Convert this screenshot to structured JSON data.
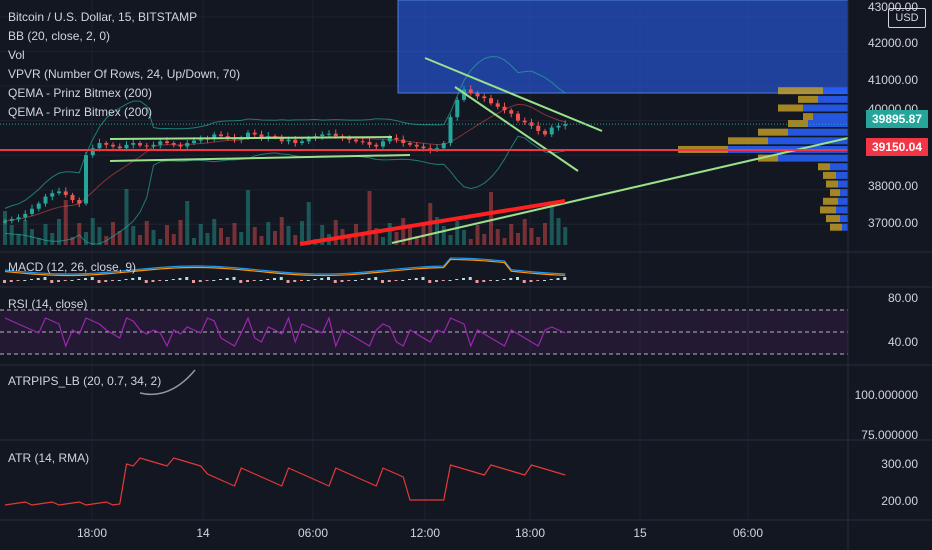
{
  "legend": {
    "title": "Bitcoin / U.S. Dollar, 15, BITSTAMP",
    "lines": [
      "BB (20, close, 2, 0)",
      "Vol",
      "VPVR (Number Of Rows, 24, Up/Down, 70)",
      "QEMA - Prinz Bitmex (200)",
      "QEMA - Prinz Bitmex (200)"
    ]
  },
  "currency": "USD",
  "price_axis": {
    "ticks": [
      "43000.00",
      "42000.00",
      "41000.00",
      "40000.00",
      "38000.00",
      "37000.00"
    ],
    "last_price": "39895.87",
    "line_price": "39150.04",
    "colors": {
      "last": "#26a69a",
      "line": "#f23645"
    }
  },
  "panes": {
    "macd": {
      "label": "MACD (12, 26, close, 9)"
    },
    "rsi": {
      "label": "RSI (14, close)",
      "ticks": [
        "80.00",
        "40.00"
      ]
    },
    "atrpips": {
      "label": "ATRPIPS_LB (20, 0.7, 34, 2)",
      "ticks": [
        "100.000000",
        "75.000000"
      ]
    },
    "atr": {
      "label": "ATR (14, RMA)",
      "ticks": [
        "300.00",
        "200.00"
      ]
    }
  },
  "time_axis": [
    "18:00",
    "14",
    "06:00",
    "12:00",
    "18:00",
    "15",
    "06:00"
  ],
  "colors": {
    "up": "#26a69a",
    "down": "#ef5350",
    "trend": "#9be08a",
    "zone": "#2962ff",
    "rsi": "#9c27b0",
    "atr": "#e53935"
  },
  "chart_data": {
    "type": "candlestick",
    "title": "Bitcoin / U.S. Dollar, 15, BITSTAMP",
    "y_range": [
      36400,
      43200
    ],
    "horizontal_line": 39150.04,
    "last_price": 39895.87,
    "series": [
      {
        "name": "close",
        "values": [
          37100,
          37150,
          37200,
          37300,
          37450,
          37600,
          37800,
          37900,
          37950,
          37850,
          37700,
          37600,
          39000,
          39200,
          39350,
          39300,
          39250,
          39200,
          39300,
          39350,
          39280,
          39250,
          39300,
          39400,
          39350,
          39300,
          39250,
          39350,
          39420,
          39450,
          39500,
          39600,
          39550,
          39500,
          39450,
          39500,
          39650,
          39600,
          39500,
          39550,
          39520,
          39400,
          39450,
          39350,
          39400,
          39500,
          39550,
          39600,
          39620,
          39550,
          39500,
          39450,
          39400,
          39380,
          39300,
          39250,
          39400,
          39500,
          39450,
          39350,
          39300,
          39250,
          39200,
          39150,
          39200,
          39350,
          40100,
          40600,
          40900,
          40800,
          40700,
          40650,
          40500,
          40400,
          40300,
          40200,
          40000,
          39950,
          39850,
          39700,
          39600,
          39800,
          39850,
          39900
        ]
      }
    ]
  }
}
